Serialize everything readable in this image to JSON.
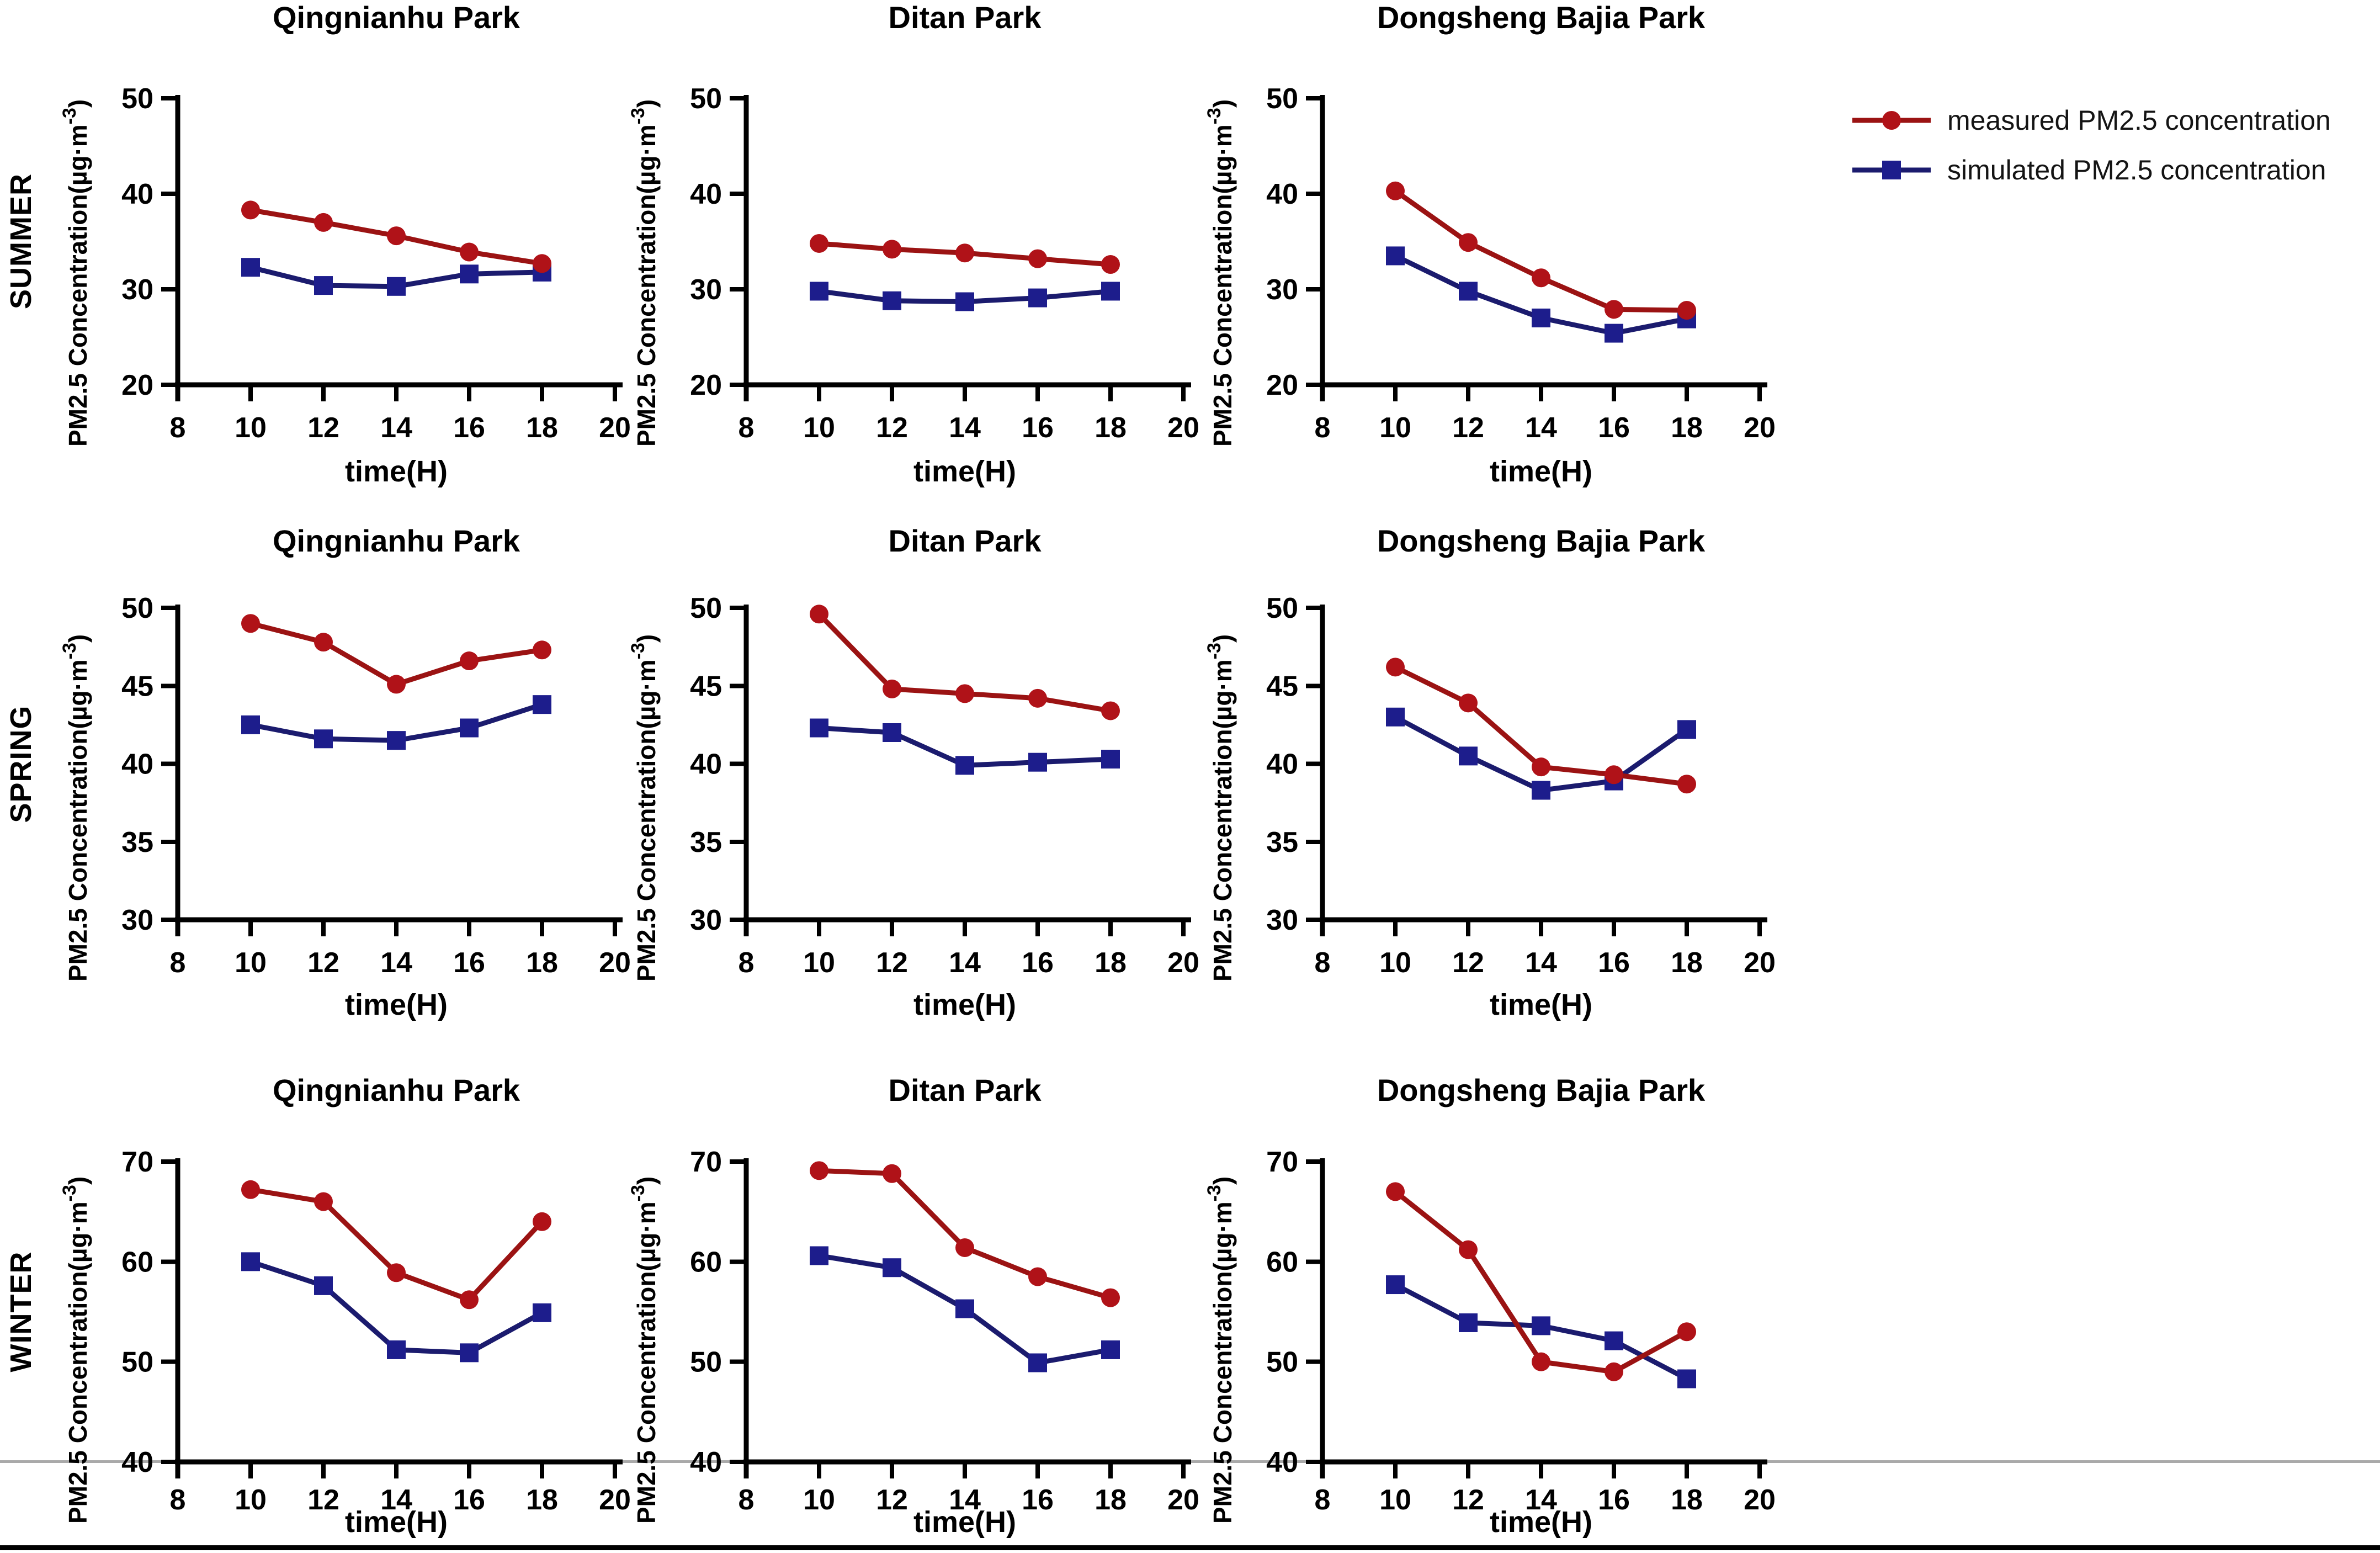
{
  "figure": {
    "rows": [
      {
        "season": "SUMMER"
      },
      {
        "season": "SPRING"
      },
      {
        "season": "WINTER"
      }
    ]
  },
  "axis": {
    "xlabel": "time(H)",
    "ylabel_prefix": "PM2.5 Concentration(µg·m",
    "ylabel_sup": "-3",
    "ylabel_suffix": ")",
    "axis_color": "#000000"
  },
  "legend": [
    {
      "label": "measured  PM2.5 concentration",
      "marker": "circle",
      "marker_color": "#B01218",
      "line_color": "#9B1313"
    },
    {
      "label": "simulated PM2.5 concentration",
      "marker": "square",
      "marker_color": "#1D1D8C",
      "line_color": "#1B1B6E"
    }
  ],
  "chart_data": [
    {
      "type": "line",
      "season": "SUMMER",
      "title": "Qingnianhu Park",
      "xlabel": "time(H)",
      "ylabel": "PM2.5 Concentration(µg·m-3)",
      "x": [
        10,
        12,
        14,
        16,
        18
      ],
      "xlim": [
        8,
        20
      ],
      "xticks": [
        8,
        10,
        12,
        14,
        16,
        18,
        20
      ],
      "ylim": [
        20,
        50
      ],
      "yticks": [
        20,
        30,
        40,
        50
      ],
      "series": [
        {
          "name": "measured PM2.5 concentration",
          "values": [
            38.3,
            37.0,
            35.6,
            33.9,
            32.7
          ]
        },
        {
          "name": "simulated PM2.5 concentration",
          "values": [
            32.3,
            30.4,
            30.3,
            31.6,
            31.8
          ]
        }
      ]
    },
    {
      "type": "line",
      "season": "SUMMER",
      "title": "Ditan Park",
      "xlabel": "time(H)",
      "ylabel": "PM2.5 Concentration(µg·m-3)",
      "x": [
        10,
        12,
        14,
        16,
        18
      ],
      "xlim": [
        8,
        20
      ],
      "xticks": [
        8,
        10,
        12,
        14,
        16,
        18,
        20
      ],
      "ylim": [
        20,
        50
      ],
      "yticks": [
        20,
        30,
        40,
        50
      ],
      "series": [
        {
          "name": "measured PM2.5 concentration",
          "values": [
            34.8,
            34.2,
            33.8,
            33.2,
            32.6
          ]
        },
        {
          "name": "simulated PM2.5 concentration",
          "values": [
            29.8,
            28.8,
            28.7,
            29.1,
            29.8
          ]
        }
      ]
    },
    {
      "type": "line",
      "season": "SUMMER",
      "title": "Dongsheng Bajia Park",
      "xlabel": "time(H)",
      "ylabel": "PM2.5 Concentration(µg·m-3)",
      "x": [
        10,
        12,
        14,
        16,
        18
      ],
      "xlim": [
        8,
        20
      ],
      "xticks": [
        8,
        10,
        12,
        14,
        16,
        18,
        20
      ],
      "ylim": [
        20,
        50
      ],
      "yticks": [
        20,
        30,
        40,
        50
      ],
      "series": [
        {
          "name": "measured PM2.5 concentration",
          "values": [
            40.3,
            34.9,
            31.2,
            27.9,
            27.8
          ]
        },
        {
          "name": "simulated PM2.5 concentration",
          "values": [
            33.5,
            29.8,
            27.0,
            25.4,
            26.9
          ]
        }
      ]
    },
    {
      "type": "line",
      "season": "SPRING",
      "title": "Qingnianhu Park",
      "xlabel": "time(H)",
      "ylabel": "PM2.5 Concentration(µg·m-3)",
      "x": [
        10,
        12,
        14,
        16,
        18
      ],
      "xlim": [
        8,
        20
      ],
      "xticks": [
        8,
        10,
        12,
        14,
        16,
        18,
        20
      ],
      "ylim": [
        30,
        50
      ],
      "yticks": [
        30,
        35,
        40,
        45,
        50
      ],
      "series": [
        {
          "name": "measured PM2.5 concentration",
          "values": [
            49.0,
            47.8,
            45.1,
            46.6,
            47.3
          ]
        },
        {
          "name": "simulated PM2.5 concentration",
          "values": [
            42.5,
            41.6,
            41.5,
            42.3,
            43.8
          ]
        }
      ]
    },
    {
      "type": "line",
      "season": "SPRING",
      "title": "Ditan Park",
      "xlabel": "time(H)",
      "ylabel": "PM2.5 Concentration(µg·m-3)",
      "x": [
        10,
        12,
        14,
        16,
        18
      ],
      "xlim": [
        8,
        20
      ],
      "xticks": [
        8,
        10,
        12,
        14,
        16,
        18,
        20
      ],
      "ylim": [
        30,
        50
      ],
      "yticks": [
        30,
        35,
        40,
        45,
        50
      ],
      "series": [
        {
          "name": "measured PM2.5 concentration",
          "values": [
            49.6,
            44.8,
            44.5,
            44.2,
            43.4
          ]
        },
        {
          "name": "simulated PM2.5 concentration",
          "values": [
            42.3,
            42.0,
            39.9,
            40.1,
            40.3
          ]
        }
      ]
    },
    {
      "type": "line",
      "season": "SPRING",
      "title": "Dongsheng Bajia Park",
      "xlabel": "time(H)",
      "ylabel": "PM2.5 Concentration(µg·m-3)",
      "x": [
        10,
        12,
        14,
        16,
        18
      ],
      "xlim": [
        8,
        20
      ],
      "xticks": [
        8,
        10,
        12,
        14,
        16,
        18,
        20
      ],
      "ylim": [
        30,
        50
      ],
      "yticks": [
        30,
        35,
        40,
        45,
        50
      ],
      "series": [
        {
          "name": "measured PM2.5 concentration",
          "values": [
            46.2,
            43.9,
            39.8,
            39.3,
            38.7
          ]
        },
        {
          "name": "simulated PM2.5 concentration",
          "values": [
            43.0,
            40.5,
            38.3,
            38.9,
            42.2
          ]
        }
      ]
    },
    {
      "type": "line",
      "season": "WINTER",
      "title": "Qingnianhu Park",
      "xlabel": "time(H)",
      "ylabel": "PM2.5 Concentration(µg·m-3)",
      "x": [
        10,
        12,
        14,
        16,
        18
      ],
      "xlim": [
        8,
        20
      ],
      "xticks": [
        8,
        10,
        12,
        14,
        16,
        18,
        20
      ],
      "ylim": [
        40,
        70
      ],
      "yticks": [
        40,
        50,
        60,
        70
      ],
      "series": [
        {
          "name": "measured PM2.5 concentration",
          "values": [
            67.2,
            66.0,
            58.9,
            56.2,
            64.0
          ]
        },
        {
          "name": "simulated PM2.5 concentration",
          "values": [
            60.0,
            57.6,
            51.2,
            50.9,
            54.9
          ]
        }
      ]
    },
    {
      "type": "line",
      "season": "WINTER",
      "title": "Ditan Park",
      "xlabel": "time(H)",
      "ylabel": "PM2.5 Concentration(µg·m-3)",
      "x": [
        10,
        12,
        14,
        16,
        18
      ],
      "xlim": [
        8,
        20
      ],
      "xticks": [
        8,
        10,
        12,
        14,
        16,
        18,
        20
      ],
      "ylim": [
        40,
        70
      ],
      "yticks": [
        40,
        50,
        60,
        70
      ],
      "series": [
        {
          "name": "measured PM2.5 concentration",
          "values": [
            69.1,
            68.8,
            61.4,
            58.5,
            56.4
          ]
        },
        {
          "name": "simulated PM2.5 concentration",
          "values": [
            60.6,
            59.4,
            55.3,
            49.9,
            51.2
          ]
        }
      ]
    },
    {
      "type": "line",
      "season": "WINTER",
      "title": "Dongsheng Bajia Park",
      "xlabel": "time(H)",
      "ylabel": "PM2.5 Concentration(µg·m-3)",
      "x": [
        10,
        12,
        14,
        16,
        18
      ],
      "xlim": [
        8,
        20
      ],
      "xticks": [
        8,
        10,
        12,
        14,
        16,
        18,
        20
      ],
      "ylim": [
        40,
        70
      ],
      "yticks": [
        40,
        50,
        60,
        70
      ],
      "series": [
        {
          "name": "measured PM2.5 concentration",
          "values": [
            67.0,
            61.2,
            50.0,
            49.0,
            53.0
          ]
        },
        {
          "name": "simulated PM2.5 concentration",
          "values": [
            57.7,
            53.9,
            53.6,
            52.1,
            48.3
          ]
        }
      ]
    }
  ]
}
